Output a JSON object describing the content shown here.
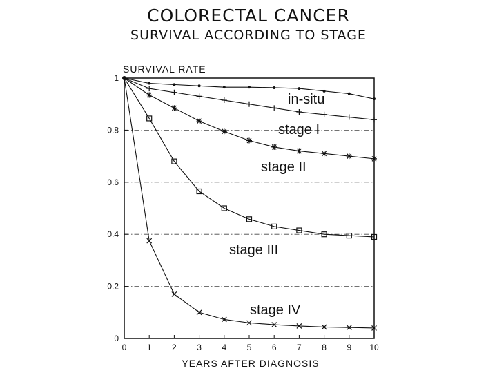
{
  "chart_data": {
    "type": "line",
    "title": "COLORECTAL CANCER",
    "subtitle": "SURVIVAL ACCORDING TO STAGE",
    "xlabel": "YEARS AFTER DIAGNOSIS",
    "ylabel": "SURVIVAL RATE",
    "xlim": [
      0,
      10
    ],
    "ylim": [
      0,
      1
    ],
    "x": [
      0,
      1,
      2,
      3,
      4,
      5,
      6,
      7,
      8,
      9,
      10
    ],
    "x_ticks": [
      "0",
      "1",
      "2",
      "3",
      "4",
      "5",
      "6",
      "7",
      "8",
      "9",
      "10"
    ],
    "y_ticks": [
      "0",
      "0.2",
      "0.4",
      "0.6",
      "0.8",
      "1"
    ],
    "grid": "dash-dot horizontal lines at 0.2 intervals",
    "series": [
      {
        "name": "in-situ",
        "marker": "dot",
        "values": [
          1.0,
          0.98,
          0.975,
          0.97,
          0.965,
          0.965,
          0.963,
          0.96,
          0.95,
          0.94,
          0.92
        ]
      },
      {
        "name": "stage I",
        "marker": "plus",
        "values": [
          1.0,
          0.96,
          0.945,
          0.93,
          0.915,
          0.9,
          0.885,
          0.87,
          0.86,
          0.85,
          0.84
        ]
      },
      {
        "name": "stage II",
        "marker": "star",
        "values": [
          1.0,
          0.935,
          0.885,
          0.835,
          0.795,
          0.76,
          0.735,
          0.72,
          0.71,
          0.7,
          0.69
        ]
      },
      {
        "name": "stage III",
        "marker": "square",
        "values": [
          1.0,
          0.845,
          0.68,
          0.565,
          0.5,
          0.458,
          0.43,
          0.415,
          0.4,
          0.395,
          0.39
        ]
      },
      {
        "name": "stage IV",
        "marker": "x",
        "values": [
          1.0,
          0.375,
          0.17,
          0.1,
          0.073,
          0.06,
          0.053,
          0.048,
          0.044,
          0.042,
          0.04
        ]
      }
    ]
  }
}
